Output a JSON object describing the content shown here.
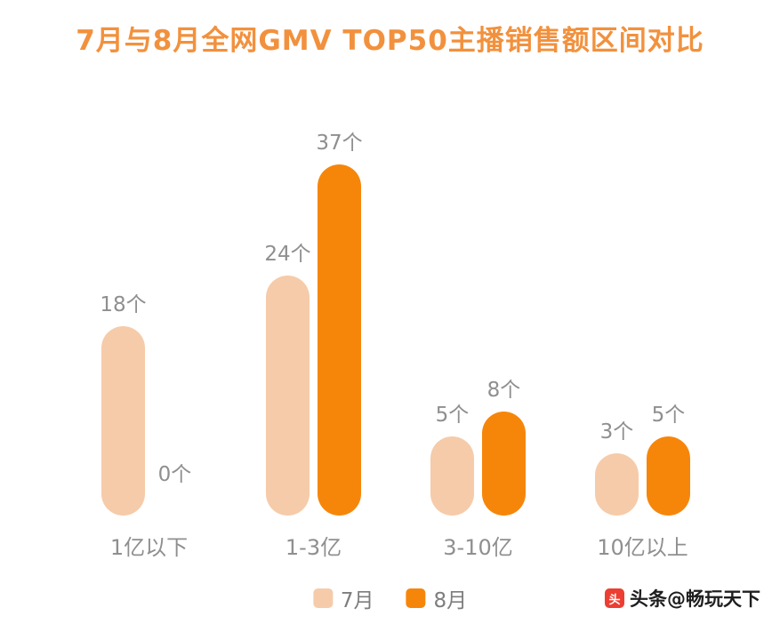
{
  "chart_data": {
    "type": "bar",
    "title": "7月与8月全网GMV TOP50主播销售额区间对比",
    "title_color": "#F2913D",
    "categories": [
      "1亿以下",
      "1-3亿",
      "3-10亿",
      "10亿以上"
    ],
    "series": [
      {
        "name": "7月",
        "color": "#F6CBA9",
        "values": [
          18,
          24,
          5,
          3
        ]
      },
      {
        "name": "8月",
        "color": "#F6860A",
        "values": [
          0,
          37,
          8,
          5
        ]
      }
    ],
    "value_suffix": "个",
    "label_color": "#8f8f8f",
    "legend_text_color": "#7d7d7d",
    "ylim": [
      0,
      40
    ],
    "grid": false,
    "legend_position": "bottom",
    "bar_shape": "rounded-pill",
    "background": "#ffffff"
  },
  "watermark": {
    "logo_char": "头",
    "logo_color": "#EC3E33",
    "text": "头条@畅玩天下",
    "text_color": "#1f1f1f"
  }
}
